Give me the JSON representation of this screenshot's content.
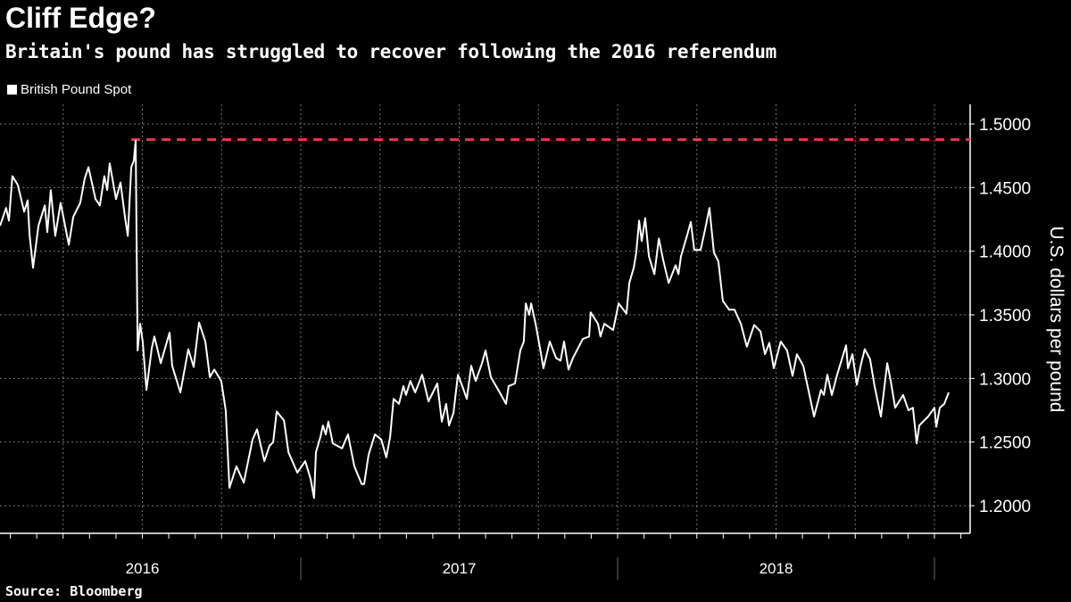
{
  "title": "Cliff Edge?",
  "subtitle": "Britain's pound has struggled to recover following the 2016 referendum",
  "source": "Source: Bloomberg",
  "colors": {
    "background": "#000000",
    "line": "#ffffff",
    "reference": "#e8334a",
    "grid": "#777777"
  },
  "chart_data": {
    "type": "line",
    "title": "Cliff Edge?",
    "subtitle": "Britain's pound has struggled to recover following the 2016 referendum",
    "ylabel": "U.S. dollars per pound",
    "xlabel": "",
    "ylim": [
      1.2,
      1.5
    ],
    "yticks": [
      "1.2000",
      "1.2500",
      "1.3000",
      "1.3500",
      "1.4000",
      "1.4500",
      "1.5000"
    ],
    "xlim": [
      2016.051,
      2019.06
    ],
    "xticks": [
      "2016",
      "2017",
      "2018"
    ],
    "grid": true,
    "legend": {
      "position": "top-left",
      "entries": [
        "British Pound Spot"
      ]
    },
    "reference_line": {
      "value": 1.4877,
      "start": 2016.465,
      "style": "dashed"
    },
    "series": [
      {
        "name": "British Pound Spot",
        "points": [
          [
            2016.051,
            1.42
          ],
          [
            2016.07,
            1.434
          ],
          [
            2016.079,
            1.424
          ],
          [
            2016.09,
            1.459
          ],
          [
            2016.107,
            1.452
          ],
          [
            2016.127,
            1.431
          ],
          [
            2016.138,
            1.44
          ],
          [
            2016.144,
            1.413
          ],
          [
            2016.155,
            1.387
          ],
          [
            2016.172,
            1.42
          ],
          [
            2016.192,
            1.436
          ],
          [
            2016.2,
            1.415
          ],
          [
            2016.211,
            1.448
          ],
          [
            2016.225,
            1.412
          ],
          [
            2016.242,
            1.438
          ],
          [
            2016.268,
            1.405
          ],
          [
            2016.282,
            1.427
          ],
          [
            2016.304,
            1.438
          ],
          [
            2016.318,
            1.457
          ],
          [
            2016.33,
            1.466
          ],
          [
            2016.352,
            1.441
          ],
          [
            2016.366,
            1.436
          ],
          [
            2016.38,
            1.459
          ],
          [
            2016.389,
            1.448
          ],
          [
            2016.397,
            1.469
          ],
          [
            2016.417,
            1.441
          ],
          [
            2016.431,
            1.454
          ],
          [
            2016.445,
            1.427
          ],
          [
            2016.454,
            1.412
          ],
          [
            2016.465,
            1.466
          ],
          [
            2016.473,
            1.471
          ],
          [
            2016.479,
            1.487
          ],
          [
            2016.485,
            1.322
          ],
          [
            2016.493,
            1.343
          ],
          [
            2016.501,
            1.329
          ],
          [
            2016.513,
            1.291
          ],
          [
            2016.53,
            1.324
          ],
          [
            2016.538,
            1.333
          ],
          [
            2016.558,
            1.312
          ],
          [
            2016.586,
            1.336
          ],
          [
            2016.594,
            1.31
          ],
          [
            2016.62,
            1.289
          ],
          [
            2016.645,
            1.323
          ],
          [
            2016.662,
            1.309
          ],
          [
            2016.679,
            1.344
          ],
          [
            2016.699,
            1.329
          ],
          [
            2016.713,
            1.301
          ],
          [
            2016.727,
            1.307
          ],
          [
            2016.749,
            1.298
          ],
          [
            2016.763,
            1.275
          ],
          [
            2016.775,
            1.214
          ],
          [
            2016.797,
            1.231
          ],
          [
            2016.82,
            1.218
          ],
          [
            2016.848,
            1.252
          ],
          [
            2016.862,
            1.26
          ],
          [
            2016.885,
            1.235
          ],
          [
            2016.901,
            1.247
          ],
          [
            2016.913,
            1.25
          ],
          [
            2016.924,
            1.274
          ],
          [
            2016.947,
            1.267
          ],
          [
            2016.961,
            1.242
          ],
          [
            2016.989,
            1.226
          ],
          [
            2017.014,
            1.235
          ],
          [
            2017.031,
            1.221
          ],
          [
            2017.042,
            1.206
          ],
          [
            2017.048,
            1.242
          ],
          [
            2017.062,
            1.254
          ],
          [
            2017.07,
            1.263
          ],
          [
            2017.079,
            1.256
          ],
          [
            2017.087,
            1.266
          ],
          [
            2017.101,
            1.249
          ],
          [
            2017.13,
            1.245
          ],
          [
            2017.149,
            1.256
          ],
          [
            2017.169,
            1.231
          ],
          [
            2017.192,
            1.217
          ],
          [
            2017.2,
            1.217
          ],
          [
            2017.214,
            1.24
          ],
          [
            2017.234,
            1.256
          ],
          [
            2017.254,
            1.252
          ],
          [
            2017.27,
            1.238
          ],
          [
            2017.282,
            1.254
          ],
          [
            2017.293,
            1.284
          ],
          [
            2017.31,
            1.28
          ],
          [
            2017.324,
            1.294
          ],
          [
            2017.332,
            1.287
          ],
          [
            2017.346,
            1.298
          ],
          [
            2017.361,
            1.289
          ],
          [
            2017.383,
            1.303
          ],
          [
            2017.403,
            1.282
          ],
          [
            2017.431,
            1.296
          ],
          [
            2017.445,
            1.266
          ],
          [
            2017.459,
            1.28
          ],
          [
            2017.468,
            1.263
          ],
          [
            2017.482,
            1.273
          ],
          [
            2017.496,
            1.303
          ],
          [
            2017.51,
            1.294
          ],
          [
            2017.524,
            1.284
          ],
          [
            2017.538,
            1.31
          ],
          [
            2017.552,
            1.298
          ],
          [
            2017.572,
            1.312
          ],
          [
            2017.583,
            1.322
          ],
          [
            2017.6,
            1.301
          ],
          [
            2017.628,
            1.289
          ],
          [
            2017.648,
            1.28
          ],
          [
            2017.656,
            1.294
          ],
          [
            2017.676,
            1.296
          ],
          [
            2017.693,
            1.322
          ],
          [
            2017.704,
            1.329
          ],
          [
            2017.71,
            1.359
          ],
          [
            2017.721,
            1.35
          ],
          [
            2017.727,
            1.359
          ],
          [
            2017.741,
            1.343
          ],
          [
            2017.755,
            1.324
          ],
          [
            2017.766,
            1.308
          ],
          [
            2017.786,
            1.329
          ],
          [
            2017.806,
            1.316
          ],
          [
            2017.82,
            1.314
          ],
          [
            2017.831,
            1.329
          ],
          [
            2017.845,
            1.307
          ],
          [
            2017.859,
            1.316
          ],
          [
            2017.89,
            1.331
          ],
          [
            2017.91,
            1.333
          ],
          [
            2017.915,
            1.352
          ],
          [
            2017.938,
            1.343
          ],
          [
            2017.946,
            1.333
          ],
          [
            2017.958,
            1.343
          ],
          [
            2017.986,
            1.338
          ],
          [
            2018.003,
            1.359
          ],
          [
            2018.028,
            1.351
          ],
          [
            2018.037,
            1.375
          ],
          [
            2018.051,
            1.387
          ],
          [
            2018.059,
            1.399
          ],
          [
            2018.068,
            1.424
          ],
          [
            2018.076,
            1.408
          ],
          [
            2018.087,
            1.426
          ],
          [
            2018.099,
            1.396
          ],
          [
            2018.116,
            1.382
          ],
          [
            2018.13,
            1.41
          ],
          [
            2018.144,
            1.393
          ],
          [
            2018.161,
            1.375
          ],
          [
            2018.183,
            1.389
          ],
          [
            2018.192,
            1.382
          ],
          [
            2018.2,
            1.396
          ],
          [
            2018.22,
            1.413
          ],
          [
            2018.231,
            1.423
          ],
          [
            2018.242,
            1.401
          ],
          [
            2018.262,
            1.401
          ],
          [
            2018.276,
            1.417
          ],
          [
            2018.29,
            1.434
          ],
          [
            2018.304,
            1.399
          ],
          [
            2018.318,
            1.392
          ],
          [
            2018.332,
            1.361
          ],
          [
            2018.352,
            1.354
          ],
          [
            2018.369,
            1.354
          ],
          [
            2018.389,
            1.343
          ],
          [
            2018.408,
            1.325
          ],
          [
            2018.431,
            1.342
          ],
          [
            2018.451,
            1.337
          ],
          [
            2018.465,
            1.319
          ],
          [
            2018.479,
            1.328
          ],
          [
            2018.493,
            1.308
          ],
          [
            2018.515,
            1.329
          ],
          [
            2018.535,
            1.322
          ],
          [
            2018.552,
            1.302
          ],
          [
            2018.566,
            1.319
          ],
          [
            2018.586,
            1.31
          ],
          [
            2018.62,
            1.27
          ],
          [
            2018.642,
            1.291
          ],
          [
            2018.651,
            1.287
          ],
          [
            2018.662,
            1.303
          ],
          [
            2018.676,
            1.287
          ],
          [
            2018.693,
            1.303
          ],
          [
            2018.721,
            1.326
          ],
          [
            2018.727,
            1.308
          ],
          [
            2018.741,
            1.319
          ],
          [
            2018.755,
            1.295
          ],
          [
            2018.769,
            1.312
          ],
          [
            2018.78,
            1.323
          ],
          [
            2018.797,
            1.315
          ],
          [
            2018.811,
            1.294
          ],
          [
            2018.831,
            1.27
          ],
          [
            2018.851,
            1.312
          ],
          [
            2018.862,
            1.298
          ],
          [
            2018.876,
            1.277
          ],
          [
            2018.901,
            1.287
          ],
          [
            2018.918,
            1.275
          ],
          [
            2018.932,
            1.277
          ],
          [
            2018.944,
            1.249
          ],
          [
            2018.952,
            1.263
          ],
          [
            2018.98,
            1.27
          ],
          [
            2019.0,
            1.277
          ],
          [
            2019.006,
            1.262
          ],
          [
            2019.017,
            1.277
          ],
          [
            2019.031,
            1.28
          ],
          [
            2019.045,
            1.289
          ]
        ]
      }
    ]
  }
}
